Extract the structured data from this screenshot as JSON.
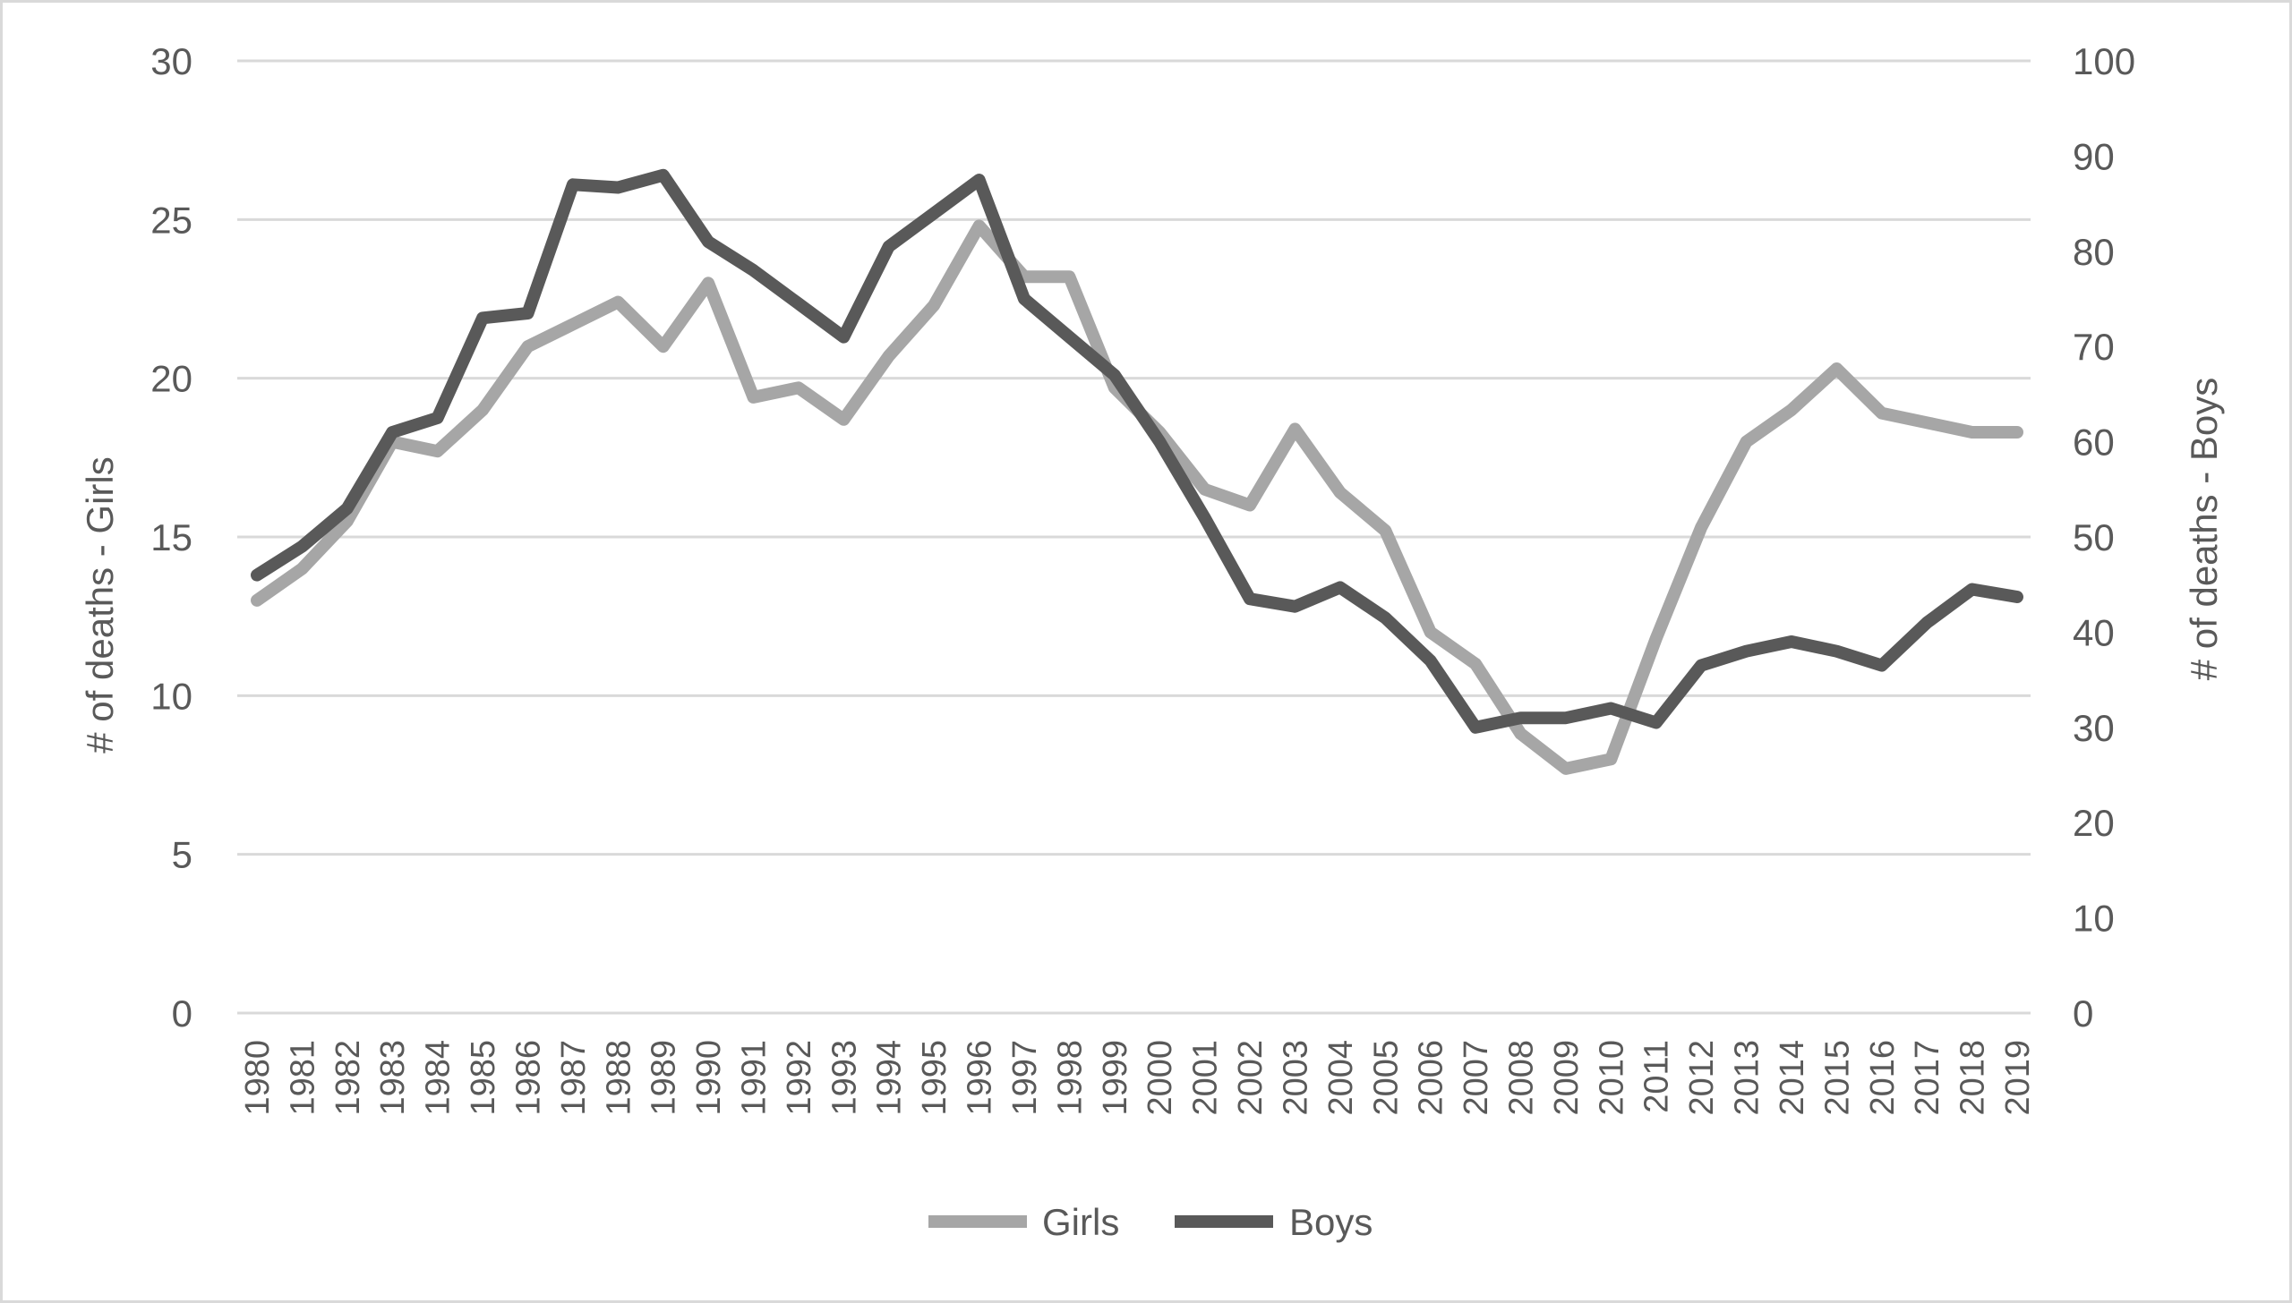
{
  "chart_data": {
    "type": "line",
    "x": [
      "1980",
      "1981",
      "1982",
      "1983",
      "1984",
      "1985",
      "1986",
      "1987",
      "1988",
      "1989",
      "1990",
      "1991",
      "1992",
      "1993",
      "1994",
      "1995",
      "1996",
      "1997",
      "1998",
      "1999",
      "2000",
      "2001",
      "2002",
      "2003",
      "2004",
      "2005",
      "2006",
      "2007",
      "2008",
      "2009",
      "2010",
      "2011",
      "2012",
      "2013",
      "2014",
      "2015",
      "2016",
      "2017",
      "2018",
      "2019"
    ],
    "y_left": {
      "label": "# of deaths - Girls",
      "range": [
        0,
        30
      ],
      "ticks": [
        "0",
        "5",
        "10",
        "15",
        "20",
        "25",
        "30"
      ]
    },
    "y_right": {
      "label": "# of deaths - Boys",
      "range": [
        0,
        100
      ],
      "ticks": [
        "0",
        "10",
        "20",
        "30",
        "40",
        "50",
        "60",
        "70",
        "80",
        "90",
        "100"
      ]
    },
    "series": [
      {
        "name": "Girls",
        "axis": "left",
        "color": "#a6a6a6",
        "values": [
          13.0,
          14.0,
          15.5,
          18.0,
          17.7,
          19.0,
          21.0,
          21.7,
          22.4,
          21.0,
          23.0,
          19.4,
          19.7,
          18.7,
          20.7,
          22.3,
          24.8,
          23.2,
          23.2,
          19.7,
          18.3,
          16.5,
          16.0,
          18.4,
          16.4,
          15.2,
          12.0,
          11.0,
          8.8,
          7.7,
          8.0,
          11.8,
          15.3,
          18.0,
          19.0,
          20.3,
          18.9,
          18.6,
          18.3,
          18.3
        ]
      },
      {
        "name": "Boys",
        "axis": "right",
        "color": "#595959",
        "values": [
          46,
          49,
          53,
          61,
          62.5,
          73,
          73.5,
          87,
          86.7,
          88,
          81,
          78,
          74.5,
          71,
          80.5,
          84,
          87.5,
          75,
          71,
          67,
          60,
          52,
          43.5,
          42.7,
          44.7,
          41.5,
          37,
          30,
          31,
          31,
          32,
          30.5,
          36.5,
          38,
          39,
          38,
          36.5,
          41,
          44.5,
          43.7
        ]
      }
    ],
    "legend": {
      "position": "bottom",
      "entries": [
        "Girls",
        "Boys"
      ]
    },
    "grid": true
  }
}
